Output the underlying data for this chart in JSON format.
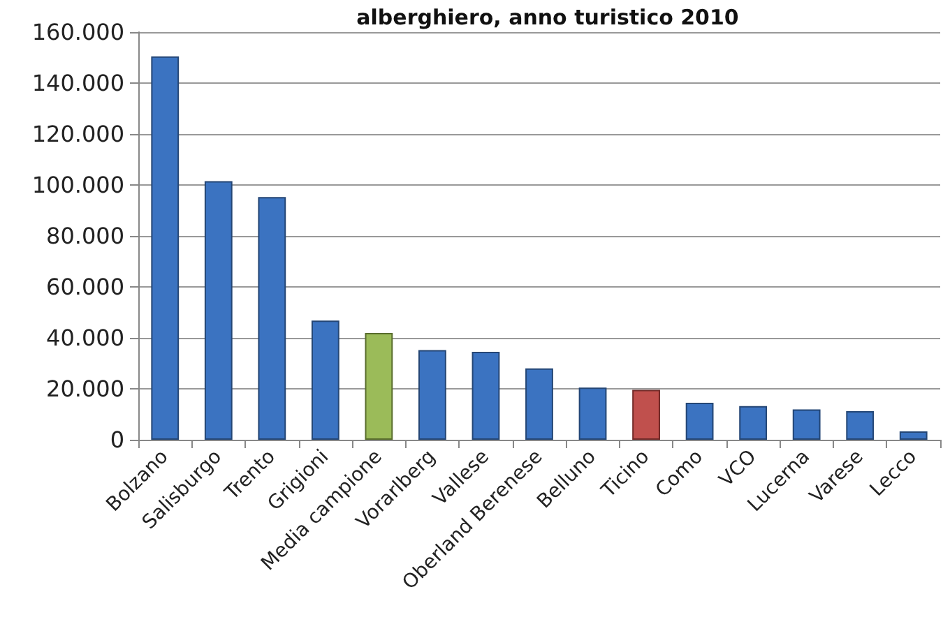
{
  "chart_data": {
    "type": "bar",
    "title": "alberghiero, anno turistico 2010",
    "categories": [
      "Bolzano",
      "Salisburgo",
      "Trento",
      "Grigioni",
      "Media campione",
      "Vorarlberg",
      "Vallese",
      "Oberland Berenese",
      "Belluno",
      "Ticino",
      "Como",
      "VCO",
      "Lucerna",
      "Varese",
      "Lecco"
    ],
    "values": [
      150500,
      101500,
      95300,
      46800,
      41900,
      35200,
      34500,
      28000,
      20500,
      19600,
      14500,
      13200,
      11900,
      11200,
      3300
    ],
    "colors": [
      "#3b73c1",
      "#3b73c1",
      "#3b73c1",
      "#3b73c1",
      "#9bbb59",
      "#3b73c1",
      "#3b73c1",
      "#3b73c1",
      "#3b73c1",
      "#c0504d",
      "#3b73c1",
      "#3b73c1",
      "#3b73c1",
      "#3b73c1",
      "#3b73c1"
    ],
    "ylim": [
      0,
      160000
    ],
    "yticks": [
      0,
      {
        "value": 20000,
        "label": "20.000"
      },
      {
        "value": 40000,
        "label": "40.000"
      },
      {
        "value": 60000,
        "label": "60.000"
      },
      {
        "value": 80000,
        "label": "80.000"
      },
      {
        "value": 100000,
        "label": "100.000"
      },
      {
        "value": 120000,
        "label": "120.000"
      },
      {
        "value": 140000,
        "label": "140.000"
      },
      {
        "value": 160000,
        "label": "160.000"
      }
    ],
    "grid": "y"
  }
}
